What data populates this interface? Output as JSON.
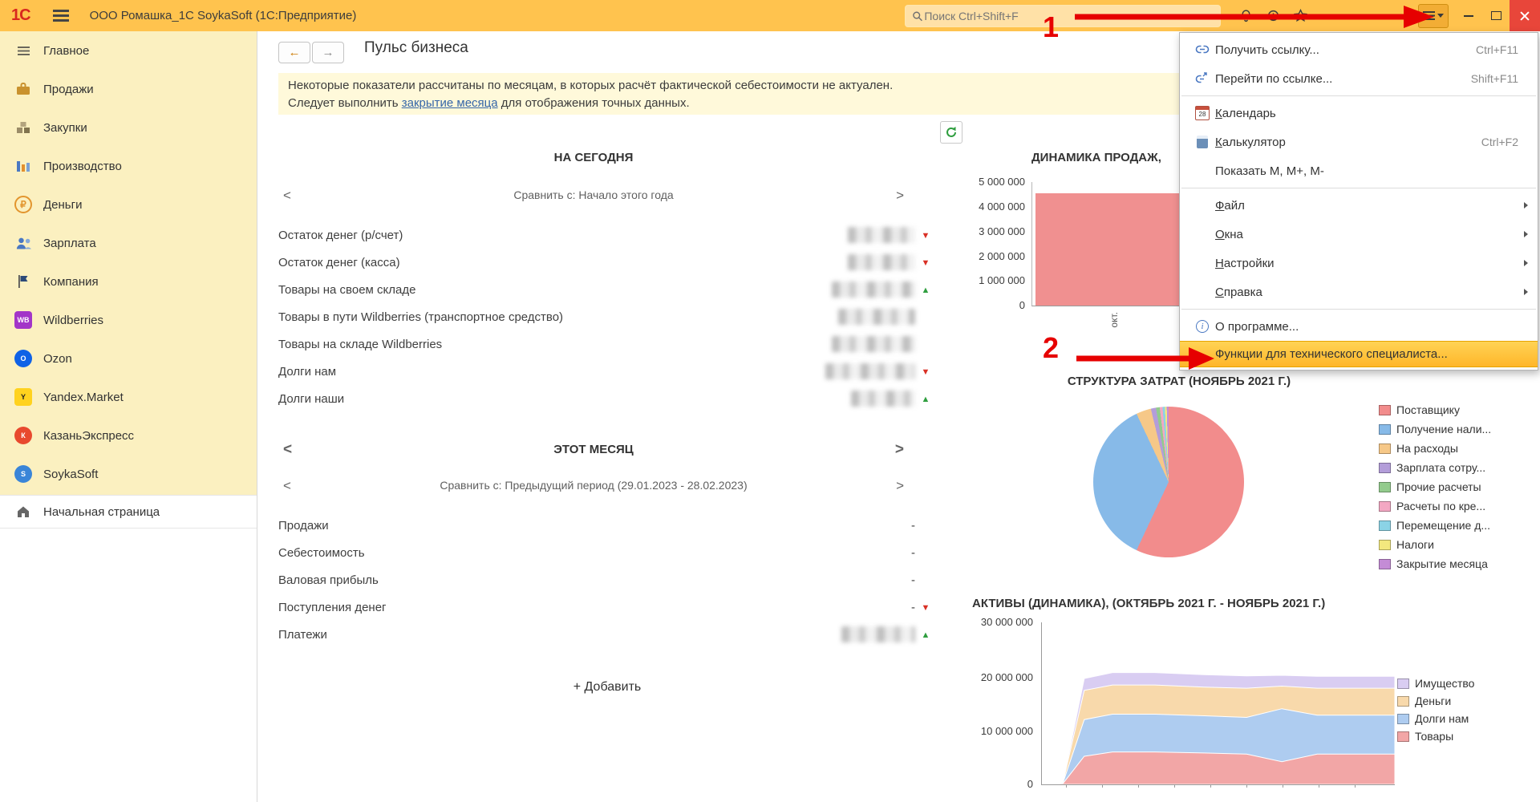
{
  "titlebar": {
    "logo_text": "1С",
    "app_title": "ООО Ромашка_1С SoykaSoft  (1С:Предприятие)",
    "search_placeholder": "Поиск Ctrl+Shift+F"
  },
  "sidebar": {
    "items": [
      {
        "label": "Главное"
      },
      {
        "label": "Продажи"
      },
      {
        "label": "Закупки"
      },
      {
        "label": "Производство"
      },
      {
        "label": "Деньги"
      },
      {
        "label": "Зарплата"
      },
      {
        "label": "Компания"
      },
      {
        "label": "Wildberries",
        "badge": "WB"
      },
      {
        "label": "Ozon",
        "badge": "O"
      },
      {
        "label": "Yandex.Market",
        "badge": "Y"
      },
      {
        "label": "КазаньЭкспресс",
        "badge": "К"
      },
      {
        "label": "SoykaSoft",
        "badge": "S"
      }
    ],
    "home_label": "Начальная страница"
  },
  "page": {
    "title": "Пульс бизнеса",
    "warning_line1": "Некоторые показатели рассчитаны по месяцам, в которых расчёт фактической себестоимости не актуален.",
    "warning_line2_prefix": "Следует выполнить ",
    "warning_link": "закрытие месяца",
    "warning_line2_suffix": " для отображения точных данных.",
    "add_button": "+ Добавить"
  },
  "today": {
    "header": "НА СЕГОДНЯ",
    "compare": "Сравнить с: Начало этого года",
    "rows": [
      {
        "label": "Остаток денег (р/счет)",
        "trend": "down"
      },
      {
        "label": "Остаток денег (касса)",
        "trend": "down"
      },
      {
        "label": "Товары на своем складе",
        "trend": "up"
      },
      {
        "label": "Товары в пути Wildberries (транспортное средство)",
        "trend": "none"
      },
      {
        "label": "Товары на складе Wildberries",
        "trend": "none"
      },
      {
        "label": "Долги нам",
        "trend": "down"
      },
      {
        "label": "Долги наши",
        "trend": "up"
      }
    ]
  },
  "month": {
    "header": "ЭТОТ МЕСЯЦ",
    "compare": "Сравнить с: Предыдущий период (29.01.2023 - 28.02.2023)",
    "rows": [
      {
        "label": "Продажи",
        "value": "-",
        "trend": "none"
      },
      {
        "label": "Себестоимость",
        "value": "-",
        "trend": "none"
      },
      {
        "label": "Валовая прибыль",
        "value": "-",
        "trend": "none"
      },
      {
        "label": "Поступления денег",
        "value": "-",
        "trend": "down"
      },
      {
        "label": "Платежи",
        "value": "",
        "blurred": true,
        "trend": "up"
      }
    ]
  },
  "menu": {
    "calendar_day": "28",
    "items": [
      {
        "label": "Получить ссылку...",
        "shortcut": "Ctrl+F11",
        "icon": "link-icon"
      },
      {
        "label": "Перейти по ссылке...",
        "shortcut": "Shift+F11",
        "icon": "goto-link-icon"
      },
      {
        "label": "Календарь",
        "icon": "calendar-icon"
      },
      {
        "label": "Калькулятор",
        "shortcut": "Ctrl+F2",
        "icon": "calculator-icon"
      },
      {
        "label": "Показать М, М+, М-"
      },
      {
        "label": "Файл",
        "submenu": true
      },
      {
        "label": "Окна",
        "submenu": true
      },
      {
        "label": "Настройки",
        "submenu": true
      },
      {
        "label": "Справка",
        "submenu": true
      },
      {
        "label": "О программе...",
        "icon": "info-icon"
      },
      {
        "label": "Функции для технического специалиста...",
        "highlighted": true
      }
    ]
  },
  "annotations": {
    "step1": "1",
    "step2": "2",
    "color": "#e60000"
  },
  "chart_data": [
    {
      "type": "bar",
      "title": "ДИНАМИКА ПРОДАЖ,",
      "categories": [
        "окт."
      ],
      "values": [
        4560000
      ],
      "ylim": [
        0,
        5000000
      ],
      "ytick_labels": [
        "5 000 000",
        "4 000 000",
        "3 000 000",
        "2 000 000",
        "1 000 000",
        "0"
      ],
      "bar_color": "#f09090",
      "legend": "none"
    },
    {
      "type": "pie",
      "title": "СТРУКТУРА ЗАТРАТ (НОЯБРЬ 2021 Г.)",
      "legend_position": "right",
      "slices": [
        {
          "label": "Поставщику",
          "value": 57,
          "color": "#f28c8c"
        },
        {
          "label": "Получение нали...",
          "value": 36,
          "color": "#87bae8"
        },
        {
          "label": "На расходы",
          "value": 3.2,
          "color": "#f6c888"
        },
        {
          "label": "Зарплата сотру...",
          "value": 1.1,
          "color": "#b39dd9"
        },
        {
          "label": "Прочие расчеты",
          "value": 0.8,
          "color": "#93cb8d"
        },
        {
          "label": "Расчеты по кре...",
          "value": 0.6,
          "color": "#f3a8c3"
        },
        {
          "label": "Перемещение д...",
          "value": 0.5,
          "color": "#8bd3e6"
        },
        {
          "label": "Налоги",
          "value": 0.4,
          "color": "#f3e87e"
        },
        {
          "label": "Закрытие месяца",
          "value": 0.4,
          "color": "#c48cd6"
        }
      ]
    },
    {
      "type": "area",
      "title": "АКТИВЫ (ДИНАМИКА), (ОКТЯБРЬ 2021 Г. - НОЯБРЬ 2021 Г.)",
      "ylim": [
        0,
        30000000
      ],
      "ytick_labels": [
        "30 000 000",
        "20 000 000",
        "10 000 000",
        "0"
      ],
      "x": [
        0,
        0.06,
        0.12,
        0.2,
        0.32,
        0.46,
        0.58,
        0.68,
        0.78,
        0.9,
        1
      ],
      "series": [
        {
          "name": "Товары",
          "color": "#f2a6a6",
          "values": [
            0,
            200000,
            5200000,
            6000000,
            6000000,
            5800000,
            5600000,
            4200000,
            5600000,
            5600000,
            5600000
          ]
        },
        {
          "name": "Долги нам",
          "color": "#aeccf0",
          "values": [
            0,
            150000,
            6800000,
            7000000,
            7000000,
            6900000,
            6800000,
            9800000,
            7200000,
            7200000,
            7200000
          ]
        },
        {
          "name": "Деньги",
          "color": "#f8d9ab",
          "values": [
            0,
            100000,
            5400000,
            5400000,
            5400000,
            5300000,
            5400000,
            4200000,
            5000000,
            5000000,
            5000000
          ]
        },
        {
          "name": "Имущество",
          "color": "#d9cdf2",
          "values": [
            0,
            50000,
            2200000,
            2300000,
            2300000,
            2300000,
            2300000,
            2000000,
            2200000,
            2200000,
            2200000
          ]
        }
      ],
      "legend_position": "right"
    }
  ]
}
